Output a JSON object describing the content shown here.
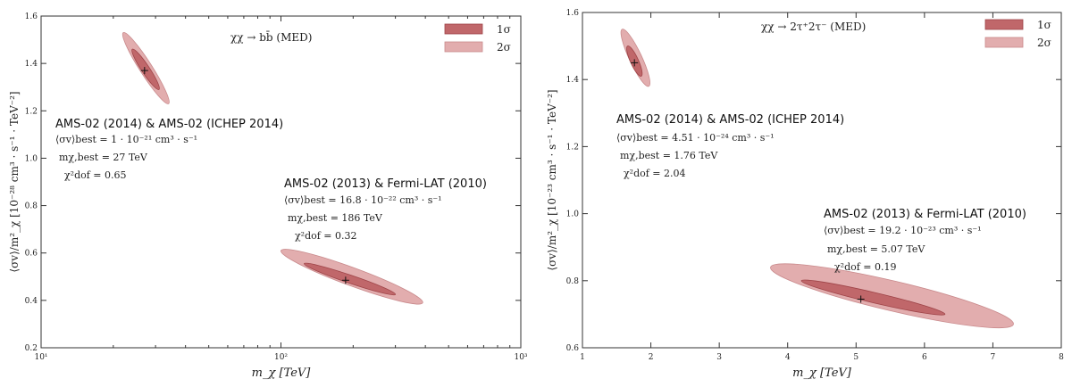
{
  "colors": {
    "sigma1": "#c0676a",
    "sigma1_edge": "#9e4448",
    "sigma2": "#e2adae",
    "sigma2_edge": "#c98a8c",
    "axis": "#333333"
  },
  "chart_data": [
    {
      "type": "scatter",
      "title": "χχ → bb̄ (MED)",
      "xlabel": "m_χ [TeV]",
      "ylabel": "⟨σv⟩/m²_χ [10⁻²⁸ cm³ · s⁻¹ · TeV⁻²]",
      "xscale": "log",
      "xlim": [
        10,
        1000
      ],
      "ylim": [
        0.2,
        1.6
      ],
      "xticks": [
        {
          "v": 10,
          "label": "10¹"
        },
        {
          "v": 100,
          "label": "10²"
        },
        {
          "v": 1000,
          "label": "10³"
        }
      ],
      "yticks": [
        0.2,
        0.4,
        0.6,
        0.8,
        1.0,
        1.2,
        1.4,
        1.6
      ],
      "legend": [
        {
          "key": "sigma1",
          "label": "1σ"
        },
        {
          "key": "sigma2",
          "label": "2σ"
        }
      ],
      "legend_position": "top-right",
      "regions": [
        {
          "name": "AMS-02 (2014) & AMS-02 (ICHEP 2014)",
          "best_fit": {
            "x": 27,
            "y": 1.37
          },
          "sigma2": {
            "x_range": [
              22,
              34
            ],
            "y_range": [
              1.23,
              1.53
            ]
          },
          "sigma1": {
            "x_range": [
              24,
              31
            ],
            "y_range": [
              1.29,
              1.46
            ]
          },
          "annotation": [
            "⟨σv⟩best = 1 · 10⁻²¹ cm³ · s⁻¹",
            "mχ,best = 27 TeV",
            "χ²dof = 0.65"
          ]
        },
        {
          "name": "AMS-02 (2013) & Fermi-LAT (2010)",
          "best_fit": {
            "x": 186,
            "y": 0.485
          },
          "sigma2": {
            "x_range": [
              100,
              390
            ],
            "y_range": [
              0.39,
              0.61
            ]
          },
          "sigma1": {
            "x_range": [
              125,
              300
            ],
            "y_range": [
              0.425,
              0.555
            ]
          },
          "annotation": [
            "⟨σv⟩best = 16.8 · 10⁻²² cm³ · s⁻¹",
            "mχ,best = 186 TeV",
            "χ²dof = 0.32"
          ]
        }
      ]
    },
    {
      "type": "scatter",
      "title": "χχ → 2τ⁺2τ⁻ (MED)",
      "xlabel": "m_χ [TeV]",
      "ylabel": "⟨σv⟩/m²_χ [10⁻²³ cm³ · s⁻¹ · TeV⁻²]",
      "xscale": "linear",
      "xlim": [
        1,
        8
      ],
      "ylim": [
        0.6,
        1.6
      ],
      "xticks": [
        {
          "v": 1,
          "label": "1"
        },
        {
          "v": 2,
          "label": "2"
        },
        {
          "v": 3,
          "label": "3"
        },
        {
          "v": 4,
          "label": "4"
        },
        {
          "v": 5,
          "label": "5"
        },
        {
          "v": 6,
          "label": "6"
        },
        {
          "v": 7,
          "label": "7"
        },
        {
          "v": 8,
          "label": "8"
        }
      ],
      "yticks": [
        0.6,
        0.8,
        1.0,
        1.2,
        1.4,
        1.6
      ],
      "legend": [
        {
          "key": "sigma1",
          "label": "1σ"
        },
        {
          "key": "sigma2",
          "label": "2σ"
        }
      ],
      "legend_position": "top-right",
      "regions": [
        {
          "name": "AMS-02 (2014) & AMS-02 (ICHEP 2014)",
          "best_fit": {
            "x": 1.76,
            "y": 1.45
          },
          "sigma2": {
            "x_range": [
              1.58,
              1.97
            ],
            "y_range": [
              1.38,
              1.55
            ]
          },
          "sigma1": {
            "x_range": [
              1.66,
              1.86
            ],
            "y_range": [
              1.41,
              1.5
            ]
          },
          "annotation": [
            "⟨σv⟩best = 4.51 · 10⁻²⁴ cm³ · s⁻¹",
            "mχ,best = 1.76 TeV",
            "χ²dof = 2.04"
          ]
        },
        {
          "name": "AMS-02 (2013) & Fermi-LAT (2010)",
          "best_fit": {
            "x": 5.07,
            "y": 0.745
          },
          "sigma2": {
            "x_range": [
              3.75,
              7.3
            ],
            "y_range": [
              0.67,
              0.84
            ]
          },
          "sigma1": {
            "x_range": [
              4.2,
              6.3
            ],
            "y_range": [
              0.7,
              0.8
            ]
          },
          "annotation": [
            "⟨σv⟩best = 19.2 · 10⁻²³ cm³ · s⁻¹",
            "mχ,best = 5.07 TeV",
            "χ²dof = 0.19"
          ]
        }
      ]
    }
  ]
}
